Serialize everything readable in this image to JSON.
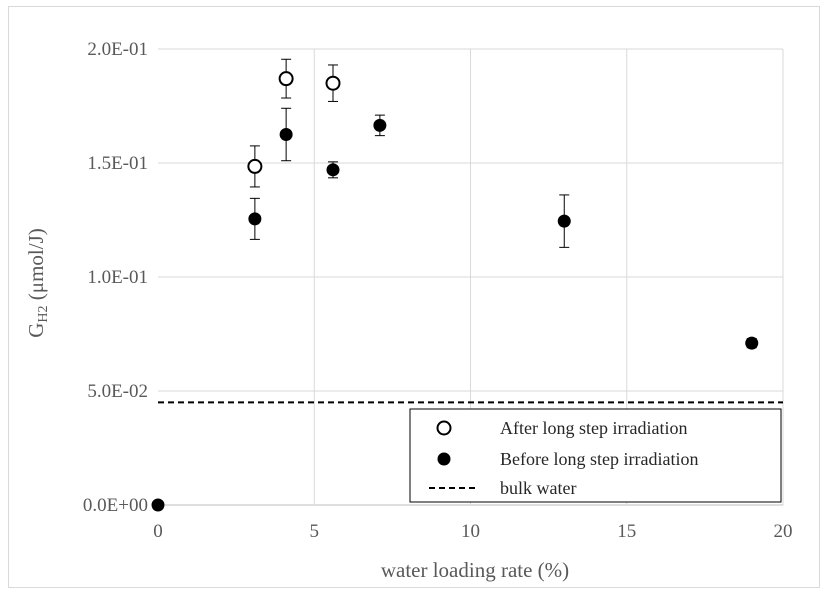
{
  "chart_data": {
    "type": "scatter",
    "xlabel": "water loading rate (%)",
    "ylabel_main": "G",
    "ylabel_sub": "H2",
    "ylabel_unit": " (μmol/J)",
    "xlim": [
      0,
      20
    ],
    "ylim": [
      0,
      0.2
    ],
    "x_ticks": [
      "0",
      "5",
      "10",
      "15",
      "20"
    ],
    "x_tick_values": [
      0,
      5,
      10,
      15,
      20
    ],
    "y_ticks": [
      "0.0E+00",
      "5.0E-02",
      "1.0E-01",
      "1.5E-01",
      "2.0E-01"
    ],
    "y_tick_values": [
      0,
      0.05,
      0.1,
      0.15,
      0.2
    ],
    "grid": true,
    "legend_position": "bottom-right",
    "series": [
      {
        "name": "After long step irradiation",
        "marker": "open-circle",
        "color": "#000000",
        "points": [
          {
            "x": 3.1,
            "y": 0.1485,
            "err": 0.009
          },
          {
            "x": 4.1,
            "y": 0.187,
            "err": 0.0085
          },
          {
            "x": 5.6,
            "y": 0.185,
            "err": 0.008
          }
        ]
      },
      {
        "name": "Before long step irradiation",
        "marker": "filled-circle",
        "color": "#000000",
        "points": [
          {
            "x": 0.0,
            "y": 0.0,
            "err": 0
          },
          {
            "x": 3.1,
            "y": 0.1255,
            "err": 0.009
          },
          {
            "x": 4.1,
            "y": 0.1625,
            "err": 0.0115
          },
          {
            "x": 5.6,
            "y": 0.147,
            "err": 0.0035
          },
          {
            "x": 7.1,
            "y": 0.1665,
            "err": 0.0045
          },
          {
            "x": 13.0,
            "y": 0.1245,
            "err": 0.0115
          },
          {
            "x": 19.0,
            "y": 0.071,
            "err": 0.002
          }
        ]
      }
    ],
    "reference_lines": [
      {
        "name": "bulk water",
        "y": 0.045,
        "style": "dashed",
        "color": "#000000"
      }
    ]
  }
}
